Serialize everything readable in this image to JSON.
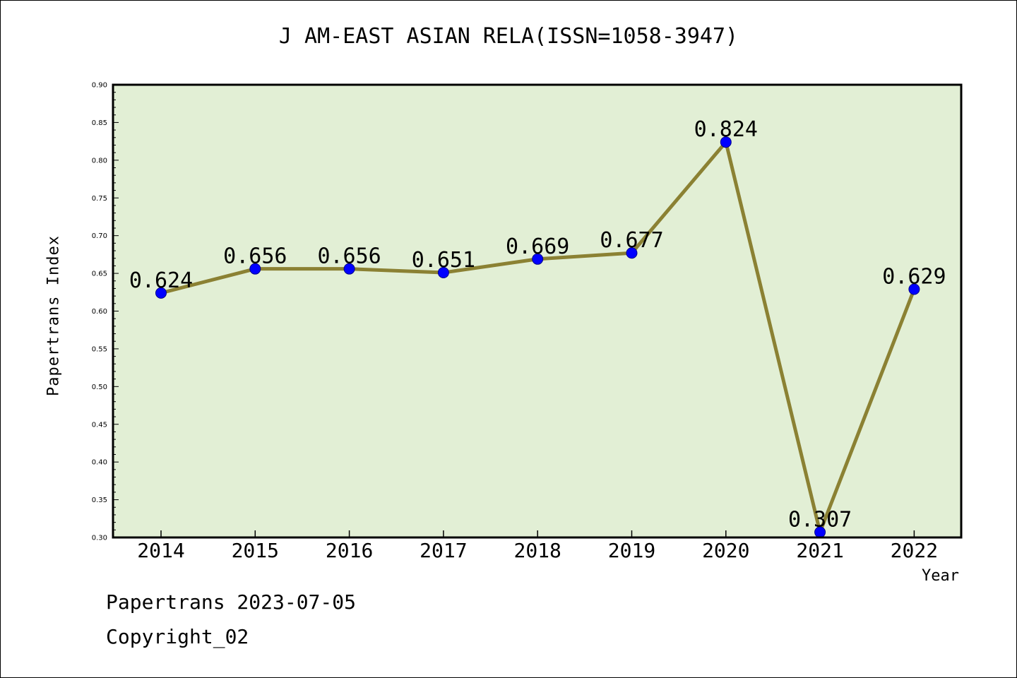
{
  "chart_data": {
    "type": "line",
    "title": "J AM-EAST ASIAN RELA(ISSN=1058-3947)",
    "xlabel": "Year",
    "ylabel": "Papertrans Index",
    "categories": [
      "2014",
      "2015",
      "2016",
      "2017",
      "2018",
      "2019",
      "2020",
      "2021",
      "2022"
    ],
    "series": [
      {
        "values": [
          0.624,
          0.656,
          0.656,
          0.651,
          0.669,
          0.677,
          0.824,
          0.307,
          0.629
        ],
        "labels": [
          "0.624",
          "0.656",
          "0.656",
          "0.651",
          "0.669",
          "0.677",
          "0.824",
          "0.307",
          "0.629"
        ],
        "line_color": "#8b8133",
        "marker_color": "#0000ff"
      }
    ],
    "ylim": [
      0.3,
      0.9
    ],
    "yticks": [
      "0.30",
      "0.35",
      "0.40",
      "0.45",
      "0.50",
      "0.55",
      "0.60",
      "0.65",
      "0.70",
      "0.75",
      "0.80",
      "0.85",
      "0.90"
    ],
    "plot_background": "#e2efd5",
    "grid": false,
    "legend": "none"
  },
  "footer": {
    "date_line": "Papertrans 2023-07-05",
    "copyright_line": "Copyright_02"
  }
}
